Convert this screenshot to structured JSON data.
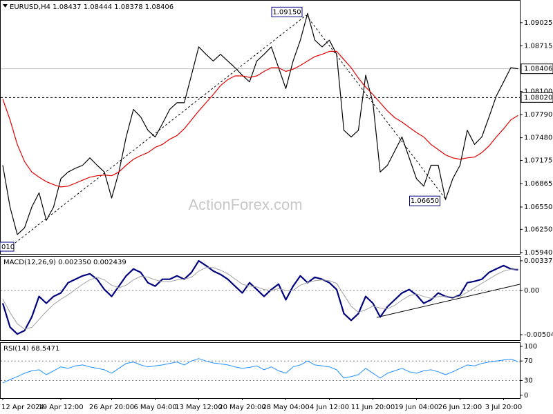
{
  "chart_data": [
    {
      "type": "line",
      "title": "EURUSD,H4  1.08437 1.08444 1.08378 1.08406",
      "watermark": "ActionForex.com",
      "edge_label": "010",
      "ylim": [
        1.0592,
        1.0932
      ],
      "yticks": [
        1.09025,
        1.08715,
        {
          "value": 1.081,
          "label": "1.08100"
        },
        {
          "value": 1.0779,
          "label": "1.07790"
        },
        {
          "value": 1.0748,
          "label": "1.07480"
        },
        1.07175,
        1.06865,
        {
          "value": 1.0655,
          "label": "1.06550"
        },
        {
          "value": 1.0625,
          "label": "1.06250"
        },
        {
          "value": 1.0594,
          "label": "1.05940"
        }
      ],
      "hlines": [
        {
          "value": 1.08406,
          "label": "1.08406",
          "style": "solid",
          "color": "#c0c0c0"
        },
        {
          "value": 1.0802,
          "label": "1.08020",
          "style": "dashed",
          "color": "#000000"
        }
      ],
      "annotations": [
        {
          "value": 1.0915,
          "label": "1.09150"
        },
        {
          "value": 1.0665,
          "label": "1.06650"
        }
      ],
      "series": [
        {
          "color": "#000000",
          "width": 1.2,
          "values": [
            1.0711,
            1.0655,
            1.0618,
            1.0627,
            1.0655,
            1.0674,
            1.0637,
            1.0655,
            1.0693,
            1.0702,
            1.0707,
            1.0711,
            1.0721,
            1.0711,
            1.0702,
            1.0667,
            1.0702,
            1.0749,
            1.0786,
            1.0776,
            1.0758,
            1.0749,
            1.0767,
            1.0786,
            1.0795,
            1.0795,
            1.0832,
            1.087,
            1.086,
            1.0851,
            1.086,
            1.0851,
            1.0842,
            1.0832,
            1.0823,
            1.0851,
            1.086,
            1.087,
            1.0842,
            1.0814,
            1.0851,
            1.0879,
            1.0915,
            1.0879,
            1.087,
            1.0879,
            1.086,
            1.0758,
            1.0749,
            1.0758,
            1.0832,
            1.0795,
            1.0702,
            1.0711,
            1.073,
            1.0749,
            1.0721,
            1.0693,
            1.0683,
            1.0711,
            1.0711,
            1.0665,
            1.0693,
            1.0711,
            1.0758,
            1.0739,
            1.0749,
            1.0776,
            1.0804,
            1.0823,
            1.0842,
            1.08406
          ]
        },
        {
          "color": "#e00000",
          "width": 1.2,
          "values": [
            1.08,
            1.0772,
            1.0739,
            1.0716,
            1.0702,
            1.0695,
            1.0689,
            1.0685,
            1.0682,
            1.0683,
            1.0687,
            1.0691,
            1.0695,
            1.0697,
            1.0698,
            1.0697,
            1.0702,
            1.0711,
            1.0719,
            1.0724,
            1.0728,
            1.0735,
            1.0739,
            1.0746,
            1.0751,
            1.076,
            1.0772,
            1.0784,
            1.0795,
            1.0806,
            1.0818,
            1.0826,
            1.0831,
            1.0831,
            1.0829,
            1.0831,
            1.0837,
            1.0842,
            1.0842,
            1.0837,
            1.084,
            1.0845,
            1.0851,
            1.0857,
            1.086,
            1.0864,
            1.0864,
            1.0853,
            1.0842,
            1.0828,
            1.0816,
            1.0806,
            1.0795,
            1.0784,
            1.0775,
            1.0769,
            1.0762,
            1.0755,
            1.0749,
            1.0739,
            1.0732,
            1.0725,
            1.0721,
            1.0719,
            1.0721,
            1.0722,
            1.0728,
            1.0737,
            1.0749,
            1.076,
            1.0772,
            1.0778
          ]
        }
      ]
    },
    {
      "type": "line",
      "title": "MACD(12,26,9) 0.002350 0.002439",
      "ylim": [
        -0.00566,
        0.00384
      ],
      "yticks": [
        0.003375,
        {
          "value": 0,
          "label": "0.00"
        },
        -0.00504
      ],
      "levels": [
        0
      ],
      "series": [
        {
          "color": "#00007f",
          "width": 2.2,
          "values": [
            -0.00146,
            -0.00418,
            -0.00496,
            -0.00457,
            -0.00302,
            -0.00068,
            -0.00146,
            -0.00068,
            -0.00029,
            0.00088,
            0.00127,
            0.00166,
            0.00189,
            0.00127,
            0.0001,
            -0.00068,
            0.00049,
            0.00166,
            0.00244,
            0.00205,
            0.00088,
            0.00049,
            0.00127,
            0.00127,
            0.00166,
            0.00127,
            0.00205,
            0.00337,
            0.00283,
            0.00221,
            0.00182,
            0.00127,
            0.00049,
            -0.00029,
            0.00088,
            0.0001,
            -0.00068,
            0.0001,
            0.00072,
            -0.00107,
            0.00049,
            0.00166,
            0.00088,
            0.0015,
            0.00127,
            0.00088,
            0.0001,
            -0.00263,
            -0.00341,
            -0.00263,
            -0.00068,
            -0.00146,
            -0.00302,
            -0.00185,
            -0.00107,
            -0.00029,
            0.0001,
            -0.00052,
            -0.00146,
            -0.00107,
            -0.00029,
            -0.00068,
            -0.00083,
            -0.00052,
            0.00088,
            0.00104,
            0.00127,
            0.00205,
            0.00244,
            0.00283,
            0.00245,
            0.00235
          ]
        },
        {
          "color": "#a0a0a0",
          "width": 1,
          "values": [
            -0.001,
            -0.0025,
            -0.0038,
            -0.0044,
            -0.0042,
            -0.0033,
            -0.0024,
            -0.0016,
            -0.001,
            -0.0005,
            0.0001,
            0.0007,
            0.0012,
            0.0015,
            0.0012,
            0.0006,
            0.0003,
            0.0006,
            0.0012,
            0.0016,
            0.0015,
            0.0012,
            0.001,
            0.001,
            0.0012,
            0.0013,
            0.0015,
            0.0022,
            0.0026,
            0.0026,
            0.0023,
            0.0019,
            0.0013,
            0.0007,
            0.0005,
            0.0004,
            0.0001,
            0,
            0.0002,
            0,
            0,
            0.0006,
            0.0009,
            0.0011,
            0.0012,
            0.0011,
            0.0008,
            -0.0005,
            -0.0018,
            -0.0025,
            -0.0022,
            -0.0018,
            -0.002,
            -0.0021,
            -0.0017,
            -0.0011,
            -0.0006,
            -0.0004,
            -0.0007,
            -0.0009,
            -0.0007,
            -0.0007,
            -0.00075,
            -0.0007,
            -0.0002,
            0.0003,
            0.0008,
            0.0013,
            0.0018,
            0.0022,
            0.0024,
            0.002439
          ]
        }
      ]
    },
    {
      "type": "line",
      "title": "RSI(14) 68.5471",
      "ylim": [
        -6,
        107
      ],
      "yticks": [
        100,
        70,
        30,
        0
      ],
      "levels": [
        70,
        30
      ],
      "categories": [
        "12 Apr 2024",
        null,
        null,
        null,
        null,
        null,
        null,
        null,
        "19 Apr 12:00",
        null,
        null,
        null,
        null,
        null,
        null,
        "26 Apr 20:00",
        null,
        null,
        null,
        null,
        null,
        "6 May 04:00",
        null,
        null,
        null,
        null,
        null,
        "13 May 12:00",
        null,
        null,
        null,
        null,
        null,
        "20 May 20:00",
        null,
        null,
        null,
        null,
        null,
        "28 May 04:00",
        null,
        null,
        null,
        null,
        null,
        "4 Jun 12:00",
        null,
        null,
        null,
        null,
        null,
        "11 Jun 20:00",
        null,
        null,
        null,
        null,
        null,
        "19 Jun 04:00",
        null,
        null,
        null,
        null,
        null,
        "26 Jun 12:00",
        null,
        null,
        null,
        null,
        null,
        "3 Jul 20:00",
        null,
        null
      ],
      "series": [
        {
          "color": "#1e90ff",
          "width": 1,
          "values": [
            25,
            32,
            38,
            45,
            50,
            52,
            42,
            50,
            58,
            55,
            60,
            62,
            58,
            55,
            52,
            45,
            55,
            65,
            68,
            62,
            58,
            60,
            62,
            65,
            68,
            62,
            70,
            75,
            70,
            66,
            64,
            62,
            58,
            55,
            57,
            60,
            52,
            58,
            50,
            45,
            58,
            62,
            70,
            62,
            60,
            58,
            52,
            35,
            38,
            42,
            55,
            45,
            35,
            45,
            50,
            55,
            48,
            45,
            50,
            52,
            48,
            42,
            48,
            55,
            62,
            60,
            65,
            68,
            70,
            72,
            74,
            68.5471
          ]
        }
      ]
    }
  ]
}
